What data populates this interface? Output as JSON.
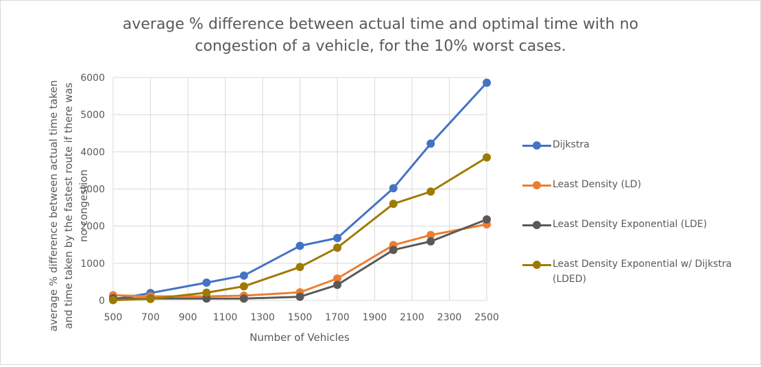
{
  "chart_data": {
    "type": "line",
    "title": "average % difference between actual time and optimal time with no congestion of a vehicle, for the 10% worst cases.",
    "title_lines": [
      "average % difference between actual time and optimal time with no",
      "congestion of a vehicle, for the 10% worst cases."
    ],
    "xlabel": "Number of Vehicles",
    "ylabel": "average % difference  between actual time taken and time taken by the fastest route if there was no congestion",
    "ylabel_lines": [
      "average % difference  between actual time taken",
      "and time taken by the fastest route if there was",
      "no congestion"
    ],
    "x": [
      500,
      700,
      1000,
      1200,
      1500,
      1700,
      2000,
      2200,
      2500
    ],
    "xlim": [
      500,
      2500
    ],
    "xticks": [
      500,
      700,
      900,
      1100,
      1300,
      1500,
      1700,
      1900,
      2100,
      2300,
      2500
    ],
    "ylim": [
      0,
      6000
    ],
    "yticks": [
      0,
      1000,
      2000,
      3000,
      4000,
      5000,
      6000
    ],
    "grid": "vertical and horizontal",
    "legend_position": "right",
    "series": [
      {
        "name": "Dijkstra",
        "color": "#4472c4",
        "values": [
          30,
          200,
          480,
          670,
          1470,
          1680,
          3020,
          4220,
          5860
        ]
      },
      {
        "name": "Least Density (LD)",
        "color": "#ed7d31",
        "values": [
          140,
          110,
          110,
          130,
          220,
          590,
          1490,
          1760,
          2050
        ]
      },
      {
        "name": "Least Density Exponential (LDE)",
        "color": "#595959",
        "values": [
          60,
          50,
          50,
          50,
          100,
          420,
          1360,
          1590,
          2180
        ]
      },
      {
        "name": "Least Density Exponential w/ Dijkstra (LDED)",
        "color": "#9e7b00",
        "values": [
          10,
          40,
          210,
          380,
          900,
          1420,
          2600,
          2930,
          3850
        ]
      }
    ]
  }
}
